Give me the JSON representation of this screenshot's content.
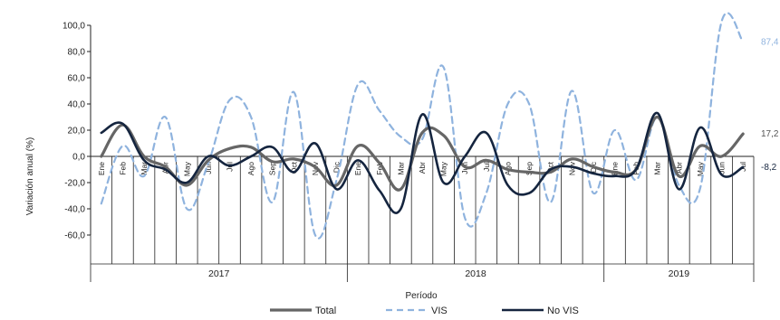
{
  "chart_data": {
    "type": "line",
    "title": "",
    "xlabel": "Período",
    "ylabel": "Variación anual (%)",
    "ylim": [
      -60,
      100
    ],
    "yticks": [
      "100,0",
      "80,0",
      "60,0",
      "40,0",
      "20,0",
      "0,0",
      "-20,0",
      "-40,0",
      "-60,0"
    ],
    "grid": false,
    "legend_position": "bottom",
    "months": [
      "Ene",
      "Feb",
      "Mar",
      "Abr",
      "May",
      "Jun",
      "Jul",
      "Ago",
      "Sep",
      "Oct",
      "Nov",
      "Dic",
      "Ene",
      "Feb",
      "Mar",
      "Abr",
      "May",
      "Jun",
      "Jul",
      "Ago",
      "Sep",
      "Oct",
      "Nov",
      "Dic",
      "Ene",
      "Feb",
      "Mar",
      "Abr",
      "May",
      "Jun",
      "Jul"
    ],
    "years": [
      {
        "label": "2017",
        "count": 12
      },
      {
        "label": "2018",
        "count": 12
      },
      {
        "label": "2019",
        "count": 7
      }
    ],
    "series": [
      {
        "name": "Total",
        "color": "#666666",
        "style": "solid",
        "values": [
          0,
          24,
          0,
          -8,
          -22,
          -3,
          6,
          7,
          -4,
          -2,
          -8,
          -22,
          8,
          -5,
          -25,
          18,
          16,
          -8,
          -3,
          -10,
          -12,
          -12,
          -2,
          -8,
          -12,
          -10,
          30,
          -15,
          8,
          0,
          17.2
        ]
      },
      {
        "name": "VIS",
        "color": "#8fb3de",
        "style": "dashed",
        "values": [
          -36,
          8,
          -15,
          30,
          -40,
          -5,
          43,
          30,
          -35,
          49,
          -60,
          -18,
          55,
          35,
          15,
          13,
          68,
          -47,
          -28,
          40,
          40,
          -35,
          50,
          -28,
          20,
          -18,
          30,
          -22,
          -24,
          103,
          87.4
        ]
      },
      {
        "name": "No VIS",
        "color": "#15253f",
        "style": "solid",
        "values": [
          18,
          25,
          -3,
          -10,
          -20,
          0,
          -7,
          0,
          7,
          -12,
          10,
          -25,
          -3,
          -26,
          -40,
          32,
          -20,
          0,
          18,
          -22,
          -28,
          -10,
          -8,
          -13,
          -15,
          -10,
          33,
          -25,
          22,
          -14,
          -8.2
        ]
      }
    ],
    "end_labels": [
      {
        "series": "VIS",
        "text": "87,4"
      },
      {
        "series": "Total",
        "text": "17,2"
      },
      {
        "series": "No VIS",
        "text": "-8,2"
      }
    ]
  }
}
